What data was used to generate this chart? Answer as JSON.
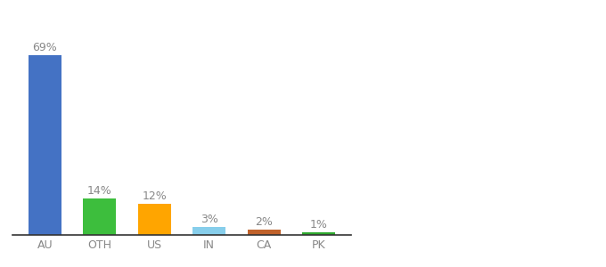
{
  "categories": [
    "AU",
    "OTH",
    "US",
    "IN",
    "CA",
    "PK"
  ],
  "values": [
    69,
    14,
    12,
    3,
    2,
    1
  ],
  "labels": [
    "69%",
    "14%",
    "12%",
    "3%",
    "2%",
    "1%"
  ],
  "bar_colors": [
    "#4472C4",
    "#3DBE3D",
    "#FFA500",
    "#87CEEB",
    "#C0622B",
    "#2EAA2E"
  ],
  "background_color": "#ffffff",
  "ylim": [
    0,
    78
  ],
  "bar_width": 0.6,
  "label_color": "#888888",
  "tick_color": "#888888",
  "spine_color": "#333333",
  "label_fontsize": 9,
  "tick_fontsize": 9
}
